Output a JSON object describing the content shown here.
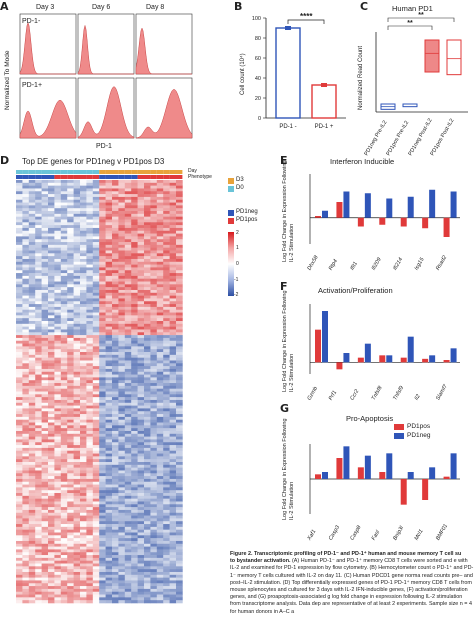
{
  "panelA": {
    "letter": "A",
    "days": [
      "Day 3",
      "Day 6",
      "Day 8"
    ],
    "row_labels": [
      "PD-1-",
      "PD-1+"
    ],
    "ylabel": "Normalized To Mode",
    "xlabel": "PD-1",
    "fill": "#ef8a8a"
  },
  "panelB": {
    "letter": "B",
    "sig": "****",
    "ylabel": "Cell count (10⁴)",
    "categories": [
      "PD-1 -",
      "PD-1 +"
    ]
  },
  "panelC": {
    "letter": "C",
    "title": "Human PD1",
    "ylabel": "Normalized Read Count",
    "sig": [
      "**",
      "**"
    ],
    "categories": [
      "PD1neg Pre-IL2",
      "PD1pos Pre-IL2",
      "PD1neg Post-IL2",
      "PD1pos Post-IL2"
    ]
  },
  "panelD": {
    "letter": "D",
    "title": "Top DE genes for PD1neg v PD1pos D3",
    "legend": {
      "day_labels": [
        "D3",
        "D0"
      ],
      "phenotype_labels": [
        "PD1neg",
        "PD1pos"
      ],
      "row_labels": [
        "Day",
        "Phenotype"
      ],
      "scale": [
        "2",
        "1",
        "0",
        "-1",
        "-2"
      ]
    }
  },
  "panelE": {
    "letter": "E",
    "title": "Interferon Inducible",
    "ylabel": "Log Fold Change in Expression Following IL-2 Stimulation"
  },
  "panelF": {
    "letter": "F",
    "title": "Activation/Proliferation",
    "ylabel": "Log Fold Change in Expression Following IL-2 Stimulation"
  },
  "panelG": {
    "letter": "G",
    "title": "Pro-Apoptosis",
    "ylabel": "Log Fold Change in Expression Following IL-2 Stimulation",
    "legend": [
      "PD1pos",
      "PD1neg"
    ]
  },
  "colors": {
    "red": "#e03a3a",
    "blue": "#2f55b8",
    "heat_hi": "#d7191c",
    "heat_lo": "#2c4ea3"
  },
  "caption": {
    "bold_lead": "Figure 2. Transcriptomic profiling of PD-1⁻ and PD-1⁺ human and mouse memory T cell su",
    "bold_line2": "to bystander activation.",
    "body": "(A) Human PD-1⁻ and PD-1⁺ memory CD8 T cells were sorted and e with IL-2 and examined for PD-1 expression by flow cytometry. (B) Hemocytometer count o PD-1⁺ and PD-1⁻ memory T cells cultured with IL-2 on day 11. (C) Human PDCD1 gene norma read counts pre– and post–IL-2 stimulation. (D) Top differentially expressed genes of PD-1 PD-1⁺ memory CD8 T cells from mouse splenocytes and cultured for 3 days with IL-2 IFN-inducible genes, (F) activation/proliferation genes, and (G) proapoptosis-associated g log fold change in expression following IL-2 stimulation from transcriptome analysis. Data dep are representative of at least 2 experiments. Sample size n = 4 for human donors in A–C a"
  },
  "chart_data": [
    {
      "type": "bar",
      "panel": "B",
      "categories": [
        "PD-1 -",
        "PD-1 +"
      ],
      "values": [
        90,
        33
      ],
      "ylim": [
        0,
        100
      ],
      "yticks": [
        0,
        20,
        40,
        60,
        80,
        100
      ],
      "ylabel": "Cell count (10⁴)"
    },
    {
      "type": "box",
      "panel": "C",
      "categories": [
        "PD1neg Pre-IL2",
        "PD1pos Pre-IL2",
        "PD1neg Post-IL2",
        "PD1pos Post-IL2"
      ],
      "ylabel": "Normalized Read Count",
      "medians": [
        2,
        3,
        22,
        20
      ],
      "q1": [
        1,
        2,
        15,
        14
      ],
      "q3": [
        3,
        3,
        27,
        27
      ]
    },
    {
      "type": "bar",
      "panel": "E",
      "categories": [
        "Dhx58",
        "Rtp4",
        "Ifit1",
        "Ifi209",
        "Ifi214",
        "Isg15",
        "Rsad2"
      ],
      "series": [
        {
          "name": "PD1pos",
          "values": [
            0.1,
            0.9,
            -0.5,
            -0.4,
            -0.5,
            -0.6,
            -1.1
          ]
        },
        {
          "name": "PD1neg",
          "values": [
            0.4,
            1.5,
            1.4,
            1.1,
            1.2,
            1.6,
            1.5
          ]
        }
      ],
      "ylim": [
        -1.5,
        2.5
      ]
    },
    {
      "type": "bar",
      "panel": "F",
      "categories": [
        "Gzmb",
        "Prf1",
        "Ccr2",
        "Tnfsf8",
        "Tnfsf9",
        "Il2",
        "Slamf7"
      ],
      "series": [
        {
          "name": "PD1pos",
          "values": [
            1.4,
            -0.3,
            0.2,
            0.3,
            0.2,
            0.15,
            0.1
          ]
        },
        {
          "name": "PD1neg",
          "values": [
            2.2,
            0.4,
            0.8,
            0.3,
            1.1,
            0.3,
            0.6
          ]
        }
      ],
      "ylim": [
        -0.5,
        2.5
      ]
    },
    {
      "type": "bar",
      "panel": "G",
      "categories": [
        "Xaf1",
        "Casp3",
        "Casp8",
        "Fasl",
        "Bnip3l",
        "Mcl1",
        "BMF01"
      ],
      "series": [
        {
          "name": "PD1pos",
          "values": [
            0.2,
            0.9,
            0.5,
            0.3,
            -1.1,
            -0.9,
            0.1
          ]
        },
        {
          "name": "PD1neg",
          "values": [
            0.3,
            1.4,
            1.0,
            1.1,
            0.3,
            0.5,
            1.1
          ]
        }
      ],
      "ylim": [
        -1.5,
        1.5
      ]
    }
  ]
}
